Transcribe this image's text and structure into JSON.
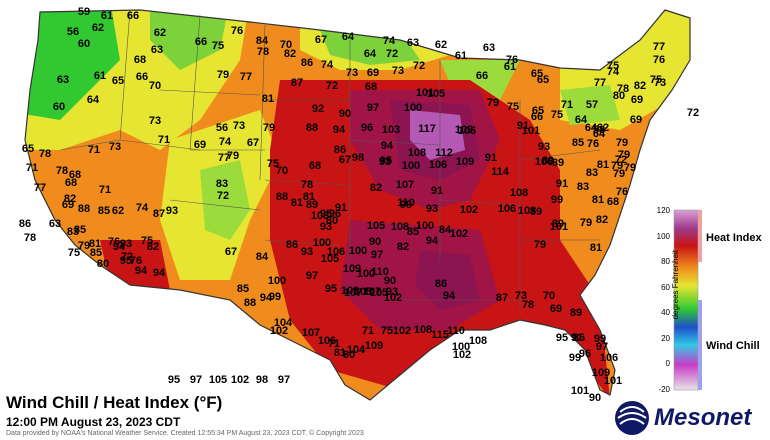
{
  "title": "Wind Chill / Heat Index (°F)",
  "subtitle": "12:00 PM August 23, 2023 CDT",
  "credit": "Data provided by NOAA's National Weather Service. Created 12:55:34 PM August 23, 2023 CDT. © Copyright 2023",
  "logo_text": "Mesonet",
  "legend": {
    "unit": "degrees Fahrenheit",
    "heat_label": "Heat Index",
    "chill_label": "Wind Chill",
    "ticks": [
      "120",
      "100",
      "80",
      "60",
      "40",
      "20",
      "0",
      "-20"
    ]
  },
  "colors": {
    "cool": "#32c832",
    "mild": "#e6e632",
    "warm": "#f08c1e",
    "hot": "#c81414",
    "very_hot": "#8c1450",
    "extreme": "#b45ab4",
    "water": "#ffffff",
    "border": "#333333"
  },
  "readings": [
    "59",
    "61",
    "66",
    "62",
    "56",
    "62",
    "60",
    "63",
    "66",
    "76",
    "84",
    "70",
    "67",
    "64",
    "74",
    "63",
    "62",
    "68",
    "75",
    "78",
    "82",
    "86",
    "74",
    "64",
    "72",
    "73",
    "69",
    "63",
    "63",
    "61",
    "65",
    "66",
    "79",
    "77",
    "87",
    "72",
    "68",
    "73",
    "72",
    "61",
    "66",
    "76",
    "61",
    "65",
    "65",
    "75",
    "74",
    "77",
    "78",
    "80",
    "82",
    "75",
    "69",
    "76",
    "73",
    "77",
    "60",
    "64",
    "70",
    "73",
    "81",
    "92",
    "90",
    "97",
    "100",
    "105",
    "101",
    "79",
    "75",
    "65",
    "75",
    "71",
    "58",
    "64",
    "57",
    "56",
    "73",
    "79",
    "88",
    "94",
    "96",
    "103",
    "117",
    "109",
    "106",
    "101",
    "91",
    "66",
    "64",
    "64",
    "62",
    "72",
    "69",
    "65",
    "71",
    "73",
    "71",
    "69",
    "74",
    "67",
    "75",
    "68",
    "86",
    "94",
    "98",
    "93",
    "108",
    "112",
    "91",
    "93",
    "89",
    "85",
    "79",
    "76",
    "79",
    "72",
    "77",
    "79",
    "70",
    "67",
    "95",
    "100",
    "106",
    "109",
    "114",
    "106",
    "89",
    "79",
    "78",
    "71",
    "77",
    "78",
    "68",
    "68",
    "71",
    "78",
    "81",
    "91",
    "99",
    "110",
    "107",
    "108",
    "91",
    "83",
    "83",
    "81",
    "79",
    "68",
    "76",
    "81",
    "79",
    "83",
    "72",
    "88",
    "108",
    "93",
    "82",
    "78",
    "88",
    "69",
    "82",
    "74",
    "85",
    "93",
    "81",
    "80",
    "91",
    "93",
    "102",
    "106",
    "103",
    "99",
    "89",
    "86",
    "85",
    "63",
    "76",
    "62",
    "87",
    "89",
    "95",
    "96",
    "105",
    "108",
    "100",
    "102",
    "101",
    "89",
    "79",
    "82",
    "81",
    "85",
    "75",
    "83",
    "95",
    "76",
    "79",
    "82",
    "84",
    "86",
    "93",
    "100",
    "106",
    "100",
    "97",
    "90",
    "82",
    "85",
    "84",
    "94",
    "79",
    "81",
    "94",
    "93",
    "94",
    "94",
    "100",
    "97",
    "105",
    "109",
    "110",
    "100",
    "90",
    "86",
    "75",
    "80",
    "72",
    "67",
    "85",
    "88",
    "94",
    "99",
    "95",
    "108",
    "107",
    "105",
    "107",
    "105",
    "102",
    "93",
    "94",
    "87",
    "73",
    "70",
    "69",
    "78",
    "89",
    "91",
    "95",
    "102",
    "104",
    "107",
    "106",
    "104",
    "109",
    "71",
    "81",
    "80",
    "71",
    "75",
    "102",
    "108",
    "115",
    "110",
    "100",
    "108",
    "102",
    "109",
    "97",
    "86",
    "96",
    "106",
    "99",
    "99",
    "101",
    "90",
    "101",
    "95",
    "97",
    "105",
    "102",
    "98",
    "97"
  ]
}
